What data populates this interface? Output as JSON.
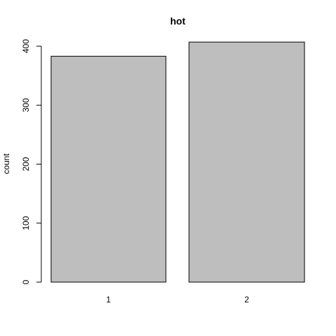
{
  "chart_data": {
    "type": "bar",
    "title": "hot",
    "xlabel": "",
    "ylabel": "count",
    "categories": [
      "1",
      "2"
    ],
    "values": [
      383,
      407
    ],
    "ylim": [
      0,
      400
    ],
    "y_ticks": [
      "0",
      "100",
      "200",
      "300",
      "400"
    ],
    "grid": false,
    "bar_color": "#bebebe",
    "bar_stroke": "#000000"
  }
}
